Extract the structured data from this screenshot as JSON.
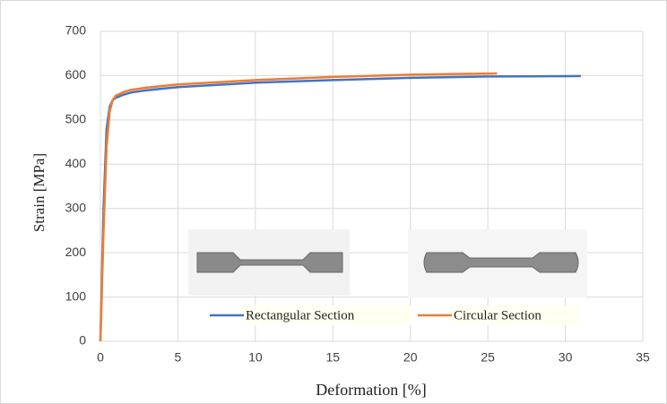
{
  "chart_data": {
    "type": "line",
    "x_label": "Deformation [%]",
    "y_label": "Strain  [MPa]",
    "xlim": [
      0,
      35
    ],
    "xticks": [
      0,
      5,
      10,
      15,
      20,
      25,
      30,
      35
    ],
    "ylim": [
      0,
      700
    ],
    "yticks": [
      0,
      100,
      200,
      300,
      400,
      500,
      600,
      700
    ],
    "grid": true,
    "series": [
      {
        "name": "Rectangular Section",
        "color": "#4472c4",
        "x": [
          0,
          0.2,
          0.4,
          0.6,
          0.8,
          1,
          1.5,
          2,
          3,
          5,
          10,
          15,
          20,
          25,
          31
        ],
        "values": [
          0,
          300,
          480,
          530,
          545,
          550,
          557,
          562,
          567,
          574,
          584,
          590,
          595,
          598,
          599
        ]
      },
      {
        "name": "Circular Section",
        "color": "#ed7d31",
        "x": [
          0,
          0.2,
          0.4,
          0.6,
          0.8,
          1,
          1.5,
          2,
          3,
          5,
          10,
          15,
          20,
          25.6
        ],
        "values": [
          0,
          250,
          440,
          520,
          545,
          555,
          563,
          568,
          573,
          580,
          590,
          597,
          602,
          605
        ]
      }
    ]
  }
}
